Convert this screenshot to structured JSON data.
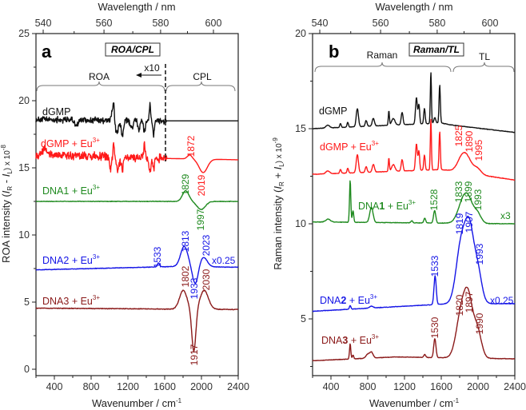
{
  "colors": {
    "black": "#111111",
    "red": "#ff1a1a",
    "green": "#1f8a1f",
    "blue": "#1515e6",
    "darkred": "#8b1a1a"
  },
  "chart_data": [
    {
      "panel": "a",
      "type": "line",
      "title": "ROA/CPL",
      "xlabel": "Wavenumber / cm",
      "xlabel_sup": "-1",
      "top_xlabel": "Wavelength / nm",
      "ylabel_parts": [
        "ROA intensity (",
        "I",
        "R",
        " - ",
        "I",
        "L",
        ") x 10",
        "-8"
      ],
      "xlim": [
        200,
        2400
      ],
      "ylim": [
        -0.5,
        25
      ],
      "xticks": [
        "400",
        "800",
        "1200",
        "1600",
        "2000",
        "2400"
      ],
      "yticks": [
        "0",
        "5",
        "10",
        "15",
        "20",
        "25"
      ],
      "top_ticks": [
        "540",
        "560",
        "580",
        "600"
      ],
      "region_labels": {
        "roa": "ROA",
        "cpl": "CPL",
        "scale": "x10"
      },
      "series": [
        {
          "name": "dGMP",
          "color": "black",
          "baseline": [
            [
              200,
              18.6
            ],
            [
              1620,
              18.5
            ],
            [
              2400,
              18.5
            ]
          ],
          "noise": [
            0.35,
            200,
            1620
          ],
          "peaks": [
            [
              640,
              -0.4,
              20
            ],
            [
              1030,
              0.8,
              8
            ],
            [
              1045,
              1.3,
              6
            ],
            [
              1080,
              -1.0,
              15
            ],
            [
              1140,
              -1.2,
              12
            ],
            [
              1240,
              -0.6,
              15
            ],
            [
              1320,
              -0.8,
              10
            ],
            [
              1380,
              -0.9,
              10
            ],
            [
              1440,
              1.2,
              8
            ],
            [
              1480,
              -1.0,
              8
            ]
          ]
        },
        {
          "name": "dGMP + Eu3+",
          "color": "red",
          "baseline": [
            [
              200,
              16.0
            ],
            [
              1620,
              15.7
            ],
            [
              2400,
              15.6
            ]
          ],
          "noise": [
            0.45,
            200,
            1620
          ],
          "peaks": [
            [
              300,
              0.4,
              30
            ],
            [
              1010,
              -0.8,
              10
            ],
            [
              1045,
              1.2,
              6
            ],
            [
              1090,
              -1.0,
              15
            ],
            [
              1140,
              -0.9,
              12
            ],
            [
              1380,
              1.0,
              8
            ],
            [
              1440,
              -1.0,
              10
            ],
            [
              1480,
              -0.8,
              8
            ],
            [
              1872,
              0.3,
              25
            ],
            [
              2019,
              -1.0,
              45
            ]
          ]
        },
        {
          "name": "DNA1 + Eu3+",
          "color": "green",
          "baseline": [
            [
              200,
              12.5
            ],
            [
              2400,
              12.5
            ]
          ],
          "noise": [
            0.03,
            200,
            2400
          ],
          "peaks": [
            [
              1829,
              0.8,
              35
            ],
            [
              1997,
              -0.6,
              45
            ]
          ]
        },
        {
          "name": "DNA2 + Eu3+",
          "color": "blue",
          "scale": "x0.25",
          "baseline": [
            [
              200,
              7.4
            ],
            [
              1700,
              7.65
            ],
            [
              2400,
              7.6
            ]
          ],
          "noise": [
            0.03,
            200,
            2400
          ],
          "peaks": [
            [
              1533,
              0.3,
              12
            ],
            [
              1813,
              1.5,
              40
            ],
            [
              1933,
              -1.3,
              30
            ],
            [
              2023,
              0.7,
              40
            ]
          ]
        },
        {
          "name": "DNA3 + Eu3+",
          "color": "darkred",
          "baseline": [
            [
              200,
              4.55
            ],
            [
              2400,
              4.45
            ]
          ],
          "noise": [
            0.04,
            200,
            2400
          ],
          "peaks": [
            [
              1802,
              1.4,
              40
            ],
            [
              1917,
              -3.2,
              22
            ],
            [
              2030,
              1.4,
              45
            ]
          ]
        }
      ],
      "annotations": [
        "1872",
        "2019",
        "1829",
        "1997",
        "1533",
        "1813",
        "2023",
        "1933",
        "1802",
        "2030",
        "1917"
      ]
    },
    {
      "panel": "b",
      "type": "line",
      "title": "Raman/TL",
      "xlabel": "Wavenumber / cm",
      "xlabel_sup": "-1",
      "top_xlabel": "Wavelength / nm",
      "ylabel_parts": [
        "Raman intensity (",
        "I",
        "R",
        " + ",
        "I",
        "L",
        ") x 10",
        "-9"
      ],
      "xlim": [
        200,
        2400
      ],
      "ylim": [
        2,
        20
      ],
      "xticks": [
        "400",
        "800",
        "1200",
        "1600",
        "2000",
        "2400"
      ],
      "yticks": [
        "5",
        "10",
        "15",
        "20"
      ],
      "top_ticks": [
        "540",
        "560",
        "580",
        "600"
      ],
      "region_labels": {
        "raman": "Raman",
        "tl": "TL"
      },
      "series": [
        {
          "name": "dGMP",
          "color": "black",
          "baseline": [
            [
              200,
              15.0
            ],
            [
              1600,
              15.3
            ],
            [
              1700,
              15.2
            ],
            [
              2400,
              14.8
            ]
          ],
          "noise": [
            0.02,
            200,
            2400
          ],
          "peaks": [
            [
              365,
              0.15,
              20
            ],
            [
              504,
              0.2,
              8
            ],
            [
              583,
              0.25,
              8
            ],
            [
              687,
              0.95,
              12
            ],
            [
              783,
              0.3,
              10
            ],
            [
              861,
              0.4,
              12
            ],
            [
              1078,
              0.35,
              18
            ],
            [
              1174,
              0.65,
              10
            ],
            [
              1030,
              0.75,
              6
            ],
            [
              1330,
              1.4,
              10
            ],
            [
              1357,
              1.0,
              8
            ],
            [
              1417,
              0.8,
              8
            ],
            [
              1487,
              2.7,
              6
            ],
            [
              1583,
              2.0,
              7
            ],
            [
              1530,
              0.3,
              10
            ]
          ]
        },
        {
          "name": "dGMP + Eu3+",
          "color": "red",
          "baseline": [
            [
              200,
              12.6
            ],
            [
              1600,
              12.85
            ],
            [
              1700,
              12.8
            ],
            [
              2400,
              12.3
            ]
          ],
          "noise": [
            0.02,
            200,
            2400
          ],
          "peaks": [
            [
              365,
              0.15,
              20
            ],
            [
              504,
              0.2,
              8
            ],
            [
              583,
              0.25,
              8
            ],
            [
              687,
              0.95,
              12
            ],
            [
              783,
              0.3,
              10
            ],
            [
              861,
              0.4,
              12
            ],
            [
              1078,
              0.35,
              18
            ],
            [
              1174,
              0.6,
              10
            ],
            [
              1030,
              0.7,
              6
            ],
            [
              1330,
              1.4,
              10
            ],
            [
              1357,
              1.0,
              8
            ],
            [
              1417,
              0.8,
              8
            ],
            [
              1487,
              2.7,
              6
            ],
            [
              1583,
              2.0,
              7
            ],
            [
              1825,
              0.7,
              50
            ],
            [
              1890,
              0.6,
              50
            ],
            [
              1995,
              0.3,
              40
            ]
          ]
        },
        {
          "name": "DNA1 + Eu3+",
          "color": "green",
          "scale": "x3",
          "baseline": [
            [
              200,
              10.1
            ],
            [
              2400,
              10.0
            ]
          ],
          "noise": [
            0.02,
            200,
            2400
          ],
          "peaks": [
            [
              609,
              2.2,
              7
            ],
            [
              640,
              0.6,
              8
            ],
            [
              370,
              0.15,
              25
            ],
            [
              840,
              0.8,
              18
            ],
            [
              1280,
              0.1,
              10
            ],
            [
              1420,
              0.25,
              10
            ],
            [
              1528,
              0.65,
              12
            ],
            [
              1833,
              1.0,
              55
            ],
            [
              1899,
              0.95,
              50
            ],
            [
              1993,
              0.5,
              40
            ]
          ]
        },
        {
          "name": "DNA2 + Eu3+",
          "color": "blue",
          "scale": "x0.25",
          "baseline": [
            [
              200,
              5.4
            ],
            [
              1700,
              5.8
            ],
            [
              2400,
              5.8
            ]
          ],
          "noise": [
            0.02,
            200,
            2400
          ],
          "peaks": [
            [
              609,
              0.2,
              8
            ],
            [
              840,
              0.1,
              20
            ],
            [
              1533,
              1.5,
              12
            ],
            [
              1819,
              3.2,
              55
            ],
            [
              1907,
              3.3,
              45
            ],
            [
              1993,
              1.8,
              45
            ]
          ]
        },
        {
          "name": "DNA3 + Eu3+",
          "color": "darkred",
          "baseline": [
            [
              200,
              2.8
            ],
            [
              1100,
              3.0
            ],
            [
              2400,
              2.9
            ]
          ],
          "noise": [
            0.02,
            200,
            2400
          ],
          "peaks": [
            [
              609,
              0.8,
              7
            ],
            [
              640,
              0.2,
              8
            ],
            [
              800,
              0.2,
              20
            ],
            [
              840,
              0.3,
              18
            ],
            [
              1420,
              0.15,
              10
            ],
            [
              1530,
              1.0,
              12
            ],
            [
              1820,
              2.4,
              55
            ],
            [
              1897,
              2.5,
              45
            ],
            [
              1990,
              1.5,
              45
            ]
          ]
        }
      ],
      "annotations": [
        "1825",
        "1890",
        "1995",
        "1528",
        "1833",
        "1899",
        "1993",
        "1819",
        "1907",
        "1993",
        "1533",
        "1820",
        "1897",
        "1990",
        "1530"
      ]
    }
  ],
  "labels": {
    "panel_a": "a",
    "panel_b": "b",
    "eu": "Eu",
    "eu_sup": "3+",
    "dgmp": "dGMP",
    "dna1": "DNA1",
    "dna2": "DNA2",
    "dna3": "DNA3",
    "dna": "DNA",
    "n1": "1",
    "n2": "2",
    "n3": "3",
    "plus": " + "
  }
}
